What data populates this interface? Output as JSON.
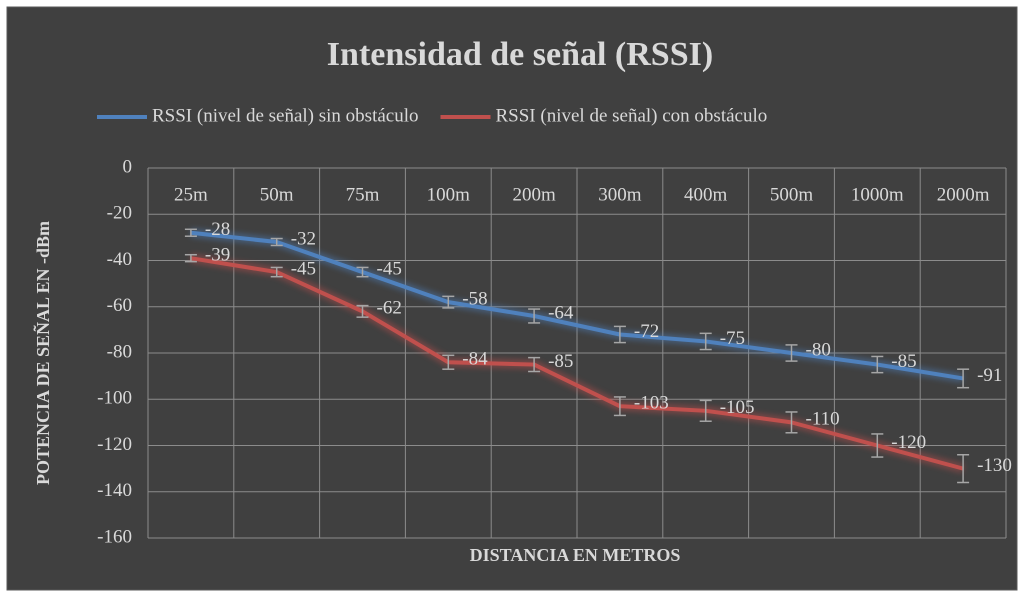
{
  "chart_data": {
    "type": "line",
    "title": "Intensidad de señal (RSSI)",
    "xlabel": "DISTANCIA EN METROS",
    "ylabel": "POTENCIA DE SEÑAL EN -dBm",
    "categories": [
      "25m",
      "50m",
      "75m",
      "100m",
      "200m",
      "300m",
      "400m",
      "500m",
      "1000m",
      "2000m"
    ],
    "series": [
      {
        "name": "RSSI (nivel de señal) sin obstáculo",
        "color": "#4f81bd",
        "values": [
          -28,
          -32,
          -45,
          -58,
          -64,
          -72,
          -75,
          -80,
          -85,
          -91
        ],
        "errors": [
          1.5,
          1.5,
          2,
          2.5,
          3,
          3.5,
          3.5,
          3.5,
          3.5,
          4
        ]
      },
      {
        "name": "RSSI (nivel de señal) con obstáculo",
        "color": "#c0504d",
        "values": [
          -39,
          -45,
          -62,
          -84,
          -85,
          -103,
          -105,
          -110,
          -120,
          -130
        ],
        "errors": [
          1.5,
          2,
          2.5,
          3,
          3,
          4,
          4.5,
          4.5,
          5,
          6
        ]
      }
    ],
    "ylim": [
      -160,
      0
    ],
    "yticks": [
      -160,
      -140,
      -120,
      -100,
      -80,
      -60,
      -40,
      -20,
      0
    ],
    "grid": true,
    "legend": "top"
  }
}
